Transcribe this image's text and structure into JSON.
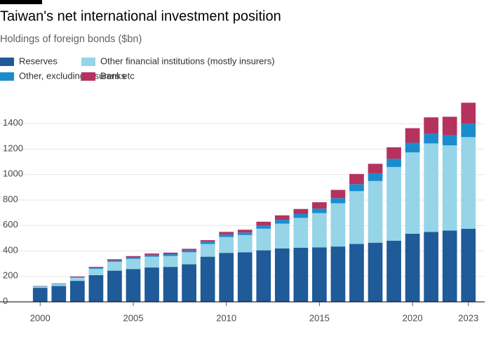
{
  "chart_data": {
    "type": "stacked-bar",
    "title": "Taiwan's net international investment position",
    "subtitle": "Holdings of foreign bonds ($bn)",
    "x": [
      2000,
      2001,
      2002,
      2003,
      2004,
      2005,
      2006,
      2007,
      2008,
      2009,
      2010,
      2011,
      2012,
      2013,
      2014,
      2015,
      2016,
      2017,
      2018,
      2019,
      2020,
      2021,
      2022,
      2023
    ],
    "xlim": [
      1999.5,
      2023.5
    ],
    "xticks": [
      2000,
      2005,
      2010,
      2015,
      2020,
      2023
    ],
    "ylim": [
      0,
      1600
    ],
    "yticks": [
      0,
      200,
      400,
      600,
      800,
      1000,
      1200,
      1400
    ],
    "grid": true,
    "series": [
      {
        "name": "Reserves",
        "color": "#1f5a99",
        "values": [
          110,
          125,
          165,
          210,
          245,
          258,
          270,
          275,
          295,
          355,
          385,
          390,
          405,
          420,
          425,
          428,
          435,
          455,
          465,
          480,
          535,
          550,
          560,
          575
        ]
      },
      {
        "name": "Other financial institutions (mostly insurers)",
        "color": "#96d4e8",
        "values": [
          10,
          15,
          25,
          50,
          70,
          80,
          85,
          85,
          95,
          100,
          125,
          135,
          170,
          195,
          235,
          270,
          340,
          415,
          485,
          580,
          640,
          695,
          670,
          720
        ]
      },
      {
        "name": "Other, excluding insurers etc",
        "color": "#1a8cce",
        "values": [
          3,
          3,
          5,
          8,
          10,
          12,
          15,
          15,
          15,
          18,
          20,
          20,
          25,
          30,
          30,
          35,
          40,
          55,
          60,
          65,
          75,
          75,
          80,
          105
        ]
      },
      {
        "name": "Banks",
        "color": "#b5325f",
        "values": [
          2,
          2,
          5,
          7,
          10,
          10,
          10,
          12,
          12,
          12,
          20,
          22,
          30,
          35,
          40,
          50,
          65,
          80,
          75,
          90,
          115,
          130,
          145,
          165
        ]
      }
    ]
  }
}
